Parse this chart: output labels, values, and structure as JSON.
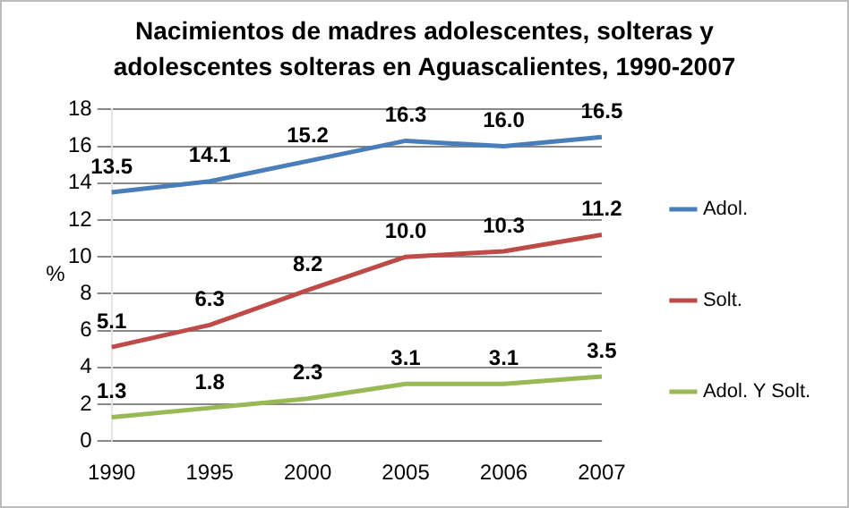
{
  "chart_data": {
    "type": "line",
    "title": "Nacimientos de madres adolescentes, solteras y adolescentes solteras en Aguascalientes, 1990-2007",
    "ylabel": "%",
    "categories": [
      "1990",
      "1995",
      "2000",
      "2005",
      "2006",
      "2007"
    ],
    "series": [
      {
        "name": "Adol.",
        "color": "#4a7ebb",
        "values": [
          13.5,
          14.1,
          15.2,
          16.3,
          16.0,
          16.5
        ],
        "value_labels": [
          "13.5",
          "14.1",
          "15.2",
          "16.3",
          "16.0",
          "16.5"
        ]
      },
      {
        "name": "Solt.",
        "color": "#be4b48",
        "values": [
          5.1,
          6.3,
          8.2,
          10.0,
          10.3,
          11.2
        ],
        "value_labels": [
          "5.1",
          "6.3",
          "8.2",
          "10.0",
          "10.3",
          "11.2"
        ]
      },
      {
        "name": "Adol. Y Solt.",
        "color": "#98b954",
        "values": [
          1.3,
          1.8,
          2.3,
          3.1,
          3.1,
          3.5
        ],
        "value_labels": [
          "1.3",
          "1.8",
          "2.3",
          "3.1",
          "3.1",
          "3.5"
        ]
      }
    ],
    "ylim": [
      0,
      18
    ],
    "yticks": [
      0,
      2,
      4,
      6,
      8,
      10,
      12,
      14,
      16,
      18
    ],
    "grid": "y",
    "legend": "right",
    "marker": "none",
    "line_style": "solid"
  }
}
